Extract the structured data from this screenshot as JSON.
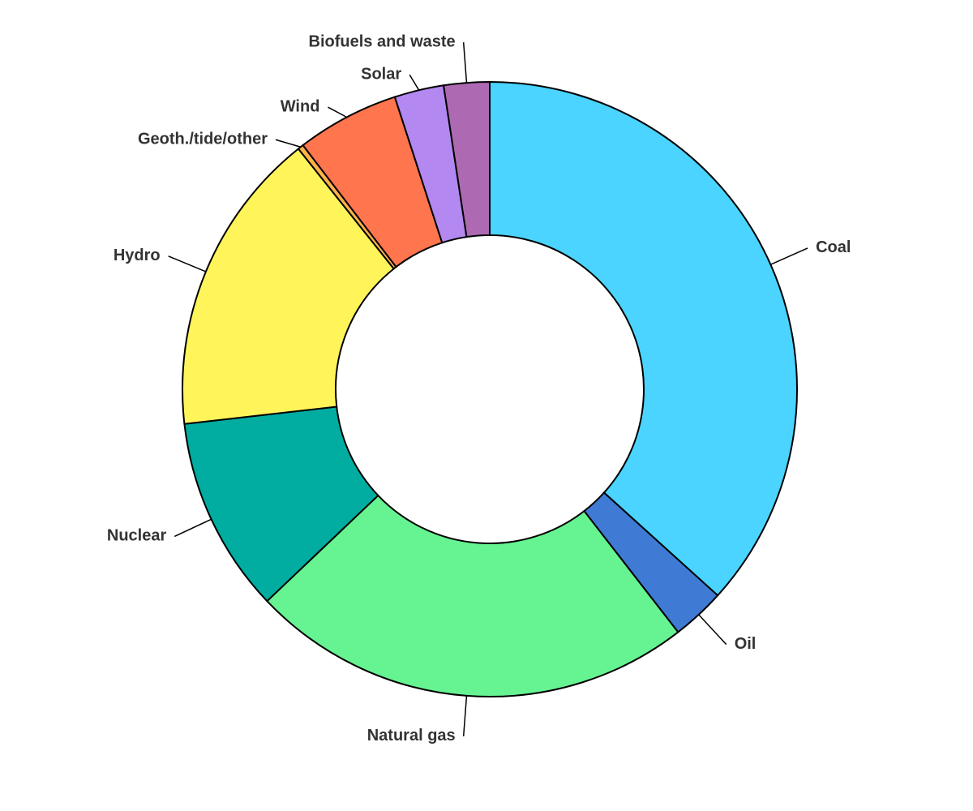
{
  "chart_data": {
    "type": "donut",
    "categories": [
      "Coal",
      "Oil",
      "Natural gas",
      "Nuclear",
      "Hydro",
      "Geoth./tide/other",
      "Wind",
      "Solar",
      "Biofuels and waste"
    ],
    "values": [
      36.7,
      2.8,
      23.4,
      10.3,
      16.1,
      0.3,
      5.4,
      2.6,
      2.4
    ],
    "colors": [
      "#4ad4ff",
      "#3f7bd4",
      "#66f492",
      "#00ada0",
      "#fff45a",
      "#ffb347",
      "#ff754d",
      "#b388f0",
      "#ad6ab3"
    ]
  }
}
